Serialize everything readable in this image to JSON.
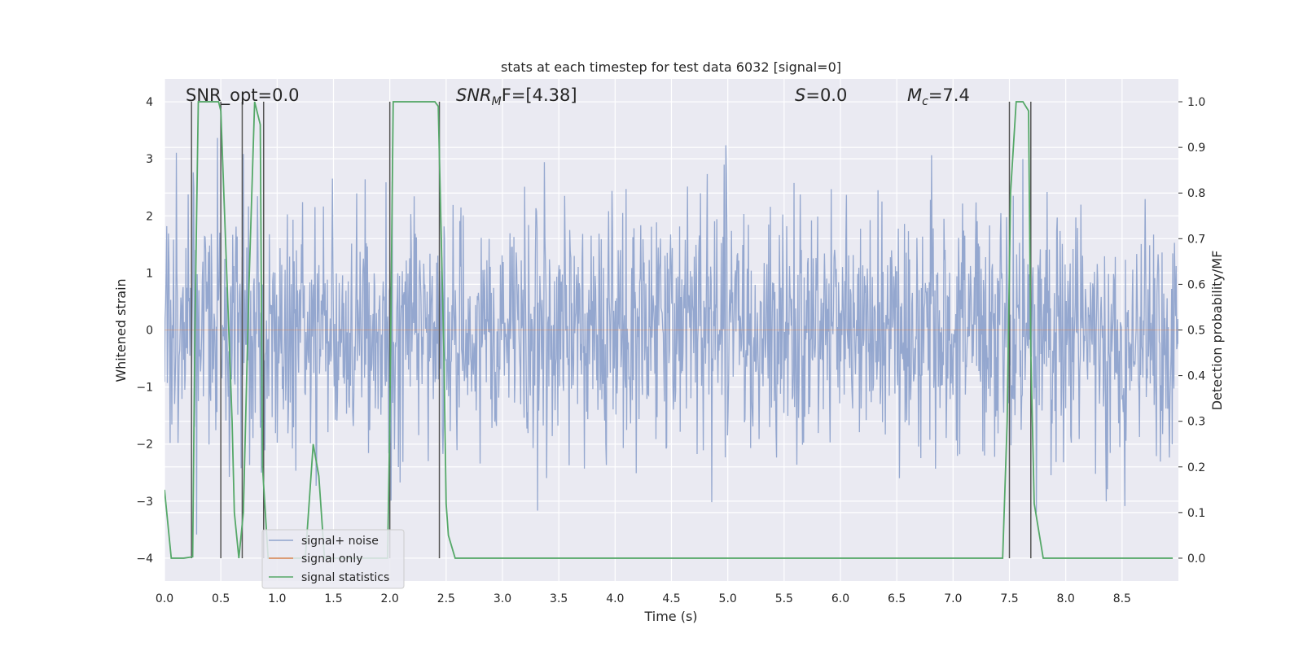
{
  "chart_data": {
    "type": "line",
    "title": "stats at each timestep for test data 6032 [signal=0]",
    "xlabel": "Time (s)",
    "ylabel": "Whitened strain",
    "y2label": "Detection probability/MF",
    "xlim": [
      0,
      9
    ],
    "ylim": [
      -4.4,
      4.4
    ],
    "y2lim": [
      -0.05,
      1.05
    ],
    "x_ticks": [
      "0.0",
      "0.5",
      "1.0",
      "1.5",
      "2.0",
      "2.5",
      "3.0",
      "3.5",
      "4.0",
      "4.5",
      "5.0",
      "5.5",
      "6.0",
      "6.5",
      "7.0",
      "7.5",
      "8.0",
      "8.5"
    ],
    "y_ticks": [
      "4",
      "3",
      "2",
      "1",
      "0",
      "−1",
      "−2",
      "−3",
      "−4"
    ],
    "y2_ticks": [
      "1.0",
      "0.9",
      "0.8",
      "0.7",
      "0.6",
      "0.5",
      "0.4",
      "0.3",
      "0.2",
      "0.1",
      "0.0"
    ],
    "grid": true,
    "legend_position": "lower-left",
    "annotations": {
      "snr_opt": "SNR_opt=0.0",
      "snr_mf_main": "SNR",
      "snr_mf_sub": "M",
      "snr_mf_tail": "F=[4.38]",
      "s_main": "S",
      "s_tail": "=0.0",
      "mc_main": "M",
      "mc_sub": "c",
      "mc_tail": "=7.4"
    },
    "series": [
      {
        "name": "signal+ noise",
        "axis": "left",
        "color": "#8fa3cc",
        "description": "Gaussian whitened noise, roughly −2 to 2.6 with spikes to ±4",
        "duration": 9,
        "sample_count": 1800
      },
      {
        "name": "signal only",
        "axis": "left",
        "color": "#dd8452",
        "x": [
          0,
          9
        ],
        "values": [
          0,
          0
        ]
      },
      {
        "name": "signal statistics",
        "axis": "right",
        "color": "#55a868",
        "x": [
          0.0,
          0.06,
          0.17,
          0.25,
          0.27,
          0.3,
          0.48,
          0.5,
          0.6,
          0.62,
          0.66,
          0.7,
          0.75,
          0.8,
          0.85,
          0.87,
          0.92,
          1.06,
          1.2,
          1.25,
          1.32,
          1.37,
          1.42,
          1.7,
          1.98,
          2.0,
          2.03,
          2.06,
          2.2,
          2.4,
          2.43,
          2.48,
          2.5,
          2.52,
          2.58,
          3.0,
          7.0,
          7.44,
          7.48,
          7.51,
          7.56,
          7.62,
          7.67,
          7.69,
          7.72,
          7.8,
          8.0,
          8.95
        ],
        "values": [
          0.15,
          0.0,
          0.0,
          0.003,
          0.5,
          1.0,
          1.0,
          0.98,
          0.3,
          0.1,
          0.0,
          0.1,
          0.6,
          1.0,
          0.95,
          0.2,
          0.0,
          0.0,
          0.0,
          0.0,
          0.25,
          0.18,
          0.0,
          0.0,
          0.0,
          0.3,
          1.0,
          1.0,
          1.0,
          1.0,
          0.99,
          0.45,
          0.12,
          0.05,
          0.0,
          0.0,
          0.0,
          0.0,
          0.3,
          0.8,
          1.0,
          1.0,
          0.98,
          0.45,
          0.12,
          0.0,
          0.0,
          0.0
        ]
      }
    ],
    "vlines": [
      0.24,
      0.5,
      0.69,
      0.88,
      2.0,
      2.44,
      7.5,
      7.69
    ]
  }
}
